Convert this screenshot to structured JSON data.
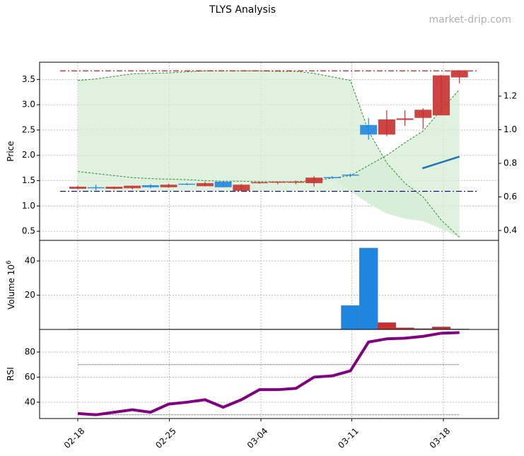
{
  "header": {
    "title": "TLYS Analysis",
    "watermark": "market-drip.com"
  },
  "colors": {
    "up": "#c8312f",
    "down": "#1f86e0",
    "green_band": "#2e8b2e",
    "band_fill": "#d6ecd6",
    "resistance": "#cc0000",
    "support": "#00008b",
    "rsi": "#800080",
    "trend": "#1f77b4"
  },
  "chart_data": [
    {
      "type": "candlestick",
      "title": "TLYS Analysis",
      "ylabel": "Price",
      "ylim": [
        0.32,
        3.84
      ],
      "yticks": [
        0.5,
        1.0,
        1.5,
        2.0,
        2.5,
        3.0,
        3.5
      ],
      "y2ticks": [
        0.4,
        0.6,
        0.8,
        1.0,
        1.2
      ],
      "x_ticks": [
        "02-18",
        "02-25",
        "03-04",
        "03-11",
        "03-18"
      ],
      "resistance": 3.67,
      "support": 1.29,
      "candles": [
        {
          "o": 1.34,
          "h": 1.4,
          "l": 1.33,
          "c": 1.38,
          "color": "up"
        },
        {
          "o": 1.37,
          "h": 1.42,
          "l": 1.31,
          "c": 1.37,
          "color": "down"
        },
        {
          "o": 1.34,
          "h": 1.38,
          "l": 1.33,
          "c": 1.38,
          "color": "up"
        },
        {
          "o": 1.35,
          "h": 1.4,
          "l": 1.33,
          "c": 1.4,
          "color": "up"
        },
        {
          "o": 1.41,
          "h": 1.43,
          "l": 1.35,
          "c": 1.37,
          "color": "down"
        },
        {
          "o": 1.37,
          "h": 1.44,
          "l": 1.36,
          "c": 1.42,
          "color": "up"
        },
        {
          "o": 1.44,
          "h": 1.45,
          "l": 1.41,
          "c": 1.42,
          "color": "down"
        },
        {
          "o": 1.39,
          "h": 1.48,
          "l": 1.39,
          "c": 1.45,
          "color": "up"
        },
        {
          "o": 1.48,
          "h": 1.48,
          "l": 1.37,
          "c": 1.37,
          "color": "down"
        },
        {
          "o": 1.3,
          "h": 1.43,
          "l": 1.29,
          "c": 1.42,
          "color": "up"
        },
        {
          "o": 1.45,
          "h": 1.48,
          "l": 1.44,
          "c": 1.47,
          "color": "up"
        },
        {
          "o": 1.46,
          "h": 1.48,
          "l": 1.43,
          "c": 1.48,
          "color": "up"
        },
        {
          "o": 1.46,
          "h": 1.5,
          "l": 1.43,
          "c": 1.48,
          "color": "up"
        },
        {
          "o": 1.45,
          "h": 1.59,
          "l": 1.38,
          "c": 1.56,
          "color": "up"
        },
        {
          "o": 1.57,
          "h": 1.59,
          "l": 1.54,
          "c": 1.56,
          "color": "down"
        },
        {
          "o": 1.6,
          "h": 1.64,
          "l": 1.57,
          "c": 1.62,
          "color": "down"
        },
        {
          "o": 2.6,
          "h": 2.74,
          "l": 2.31,
          "c": 2.41,
          "color": "down"
        },
        {
          "o": 2.41,
          "h": 2.89,
          "l": 2.38,
          "c": 2.71,
          "color": "up"
        },
        {
          "o": 2.7,
          "h": 2.89,
          "l": 2.58,
          "c": 2.73,
          "color": "up"
        },
        {
          "o": 2.74,
          "h": 2.93,
          "l": 2.52,
          "c": 2.9,
          "color": "up"
        },
        {
          "o": 2.79,
          "h": 3.59,
          "l": 2.79,
          "c": 3.58,
          "color": "up"
        },
        {
          "o": 3.54,
          "h": 3.68,
          "l": 3.42,
          "c": 3.68,
          "color": "up"
        }
      ],
      "upper_band": [
        3.48,
        3.51,
        3.56,
        3.61,
        3.62,
        3.63,
        3.65,
        3.67,
        3.67,
        3.67,
        3.67,
        3.66,
        3.66,
        3.62,
        3.55,
        3.48,
        2.48,
        1.85,
        1.45,
        1.18,
        0.72,
        0.38
      ],
      "lower_band": [
        1.68,
        1.64,
        1.6,
        1.56,
        1.54,
        1.53,
        1.52,
        1.5,
        1.49,
        1.49,
        1.48,
        1.48,
        1.48,
        1.5,
        1.55,
        1.6,
        1.8,
        2.0,
        2.25,
        2.48,
        2.9,
        3.3
      ],
      "fill_bottom": [
        1.68,
        1.64,
        1.6,
        1.56,
        1.54,
        1.53,
        1.52,
        1.5,
        1.49,
        1.49,
        1.48,
        1.48,
        1.48,
        1.5,
        1.55,
        1.29,
        1.05,
        0.85,
        0.75,
        0.7,
        0.55,
        0.38
      ],
      "trend_line": {
        "x_start": 19,
        "x_end": 21,
        "y_start_right": 0.77,
        "y_end_right": 0.84
      }
    },
    {
      "type": "bar",
      "ylabel": "Volume  10^6",
      "ylim": [
        0,
        52
      ],
      "yticks": [
        20,
        40
      ],
      "values": [
        0.2,
        0.2,
        0.2,
        0.2,
        0.2,
        0.2,
        0.2,
        0.2,
        0.2,
        0.2,
        0.2,
        0.2,
        0.2,
        0.2,
        0.2,
        14,
        47.5,
        4,
        1,
        0.5,
        1.5,
        0.3
      ],
      "colors": [
        "down",
        "down",
        "up",
        "up",
        "down",
        "up",
        "down",
        "up",
        "down",
        "up",
        "up",
        "up",
        "up",
        "up",
        "down",
        "down",
        "down",
        "up",
        "up",
        "up",
        "up",
        "down"
      ]
    },
    {
      "type": "line",
      "ylabel": "RSI",
      "ylim": [
        27,
        98
      ],
      "yticks": [
        40,
        60,
        80
      ],
      "overbought": 70,
      "oversold": 30,
      "values": [
        31,
        30,
        32,
        34,
        32,
        38.5,
        40,
        42,
        36,
        42,
        50,
        50,
        51,
        60,
        61,
        65,
        88,
        90.5,
        91,
        92.5,
        95,
        95.5
      ]
    }
  ]
}
